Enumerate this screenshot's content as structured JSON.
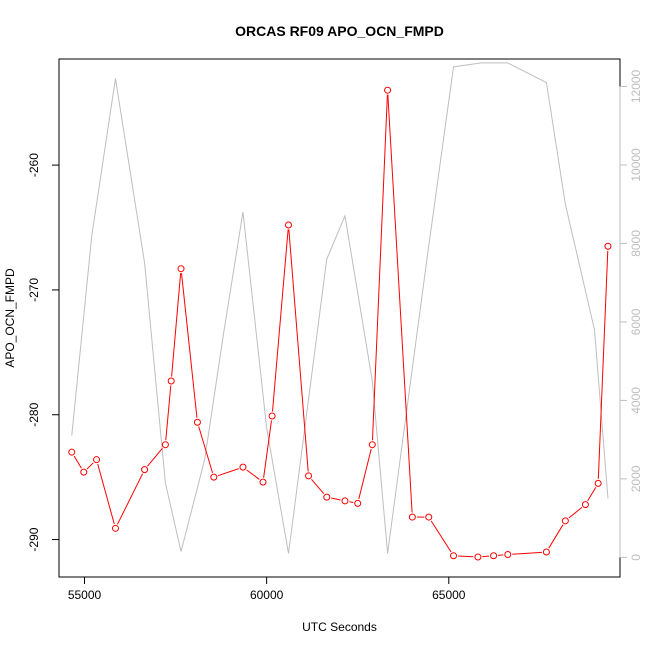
{
  "chart_data": {
    "type": "line",
    "title": "ORCAS RF09 APO_OCN_FMPD",
    "xlabel": "UTC Seconds",
    "ylabel": "APO_OCN_FMPD",
    "xlim": [
      54300,
      69700
    ],
    "ylim": [
      -293,
      -251.5
    ],
    "y2lim": [
      -500,
      12700
    ],
    "x_ticks": [
      55000,
      60000,
      65000
    ],
    "y_ticks": [
      -290,
      -280,
      -270,
      -260
    ],
    "y2_ticks": [
      0,
      2000,
      4000,
      6000,
      8000,
      10000,
      12000
    ],
    "grid": false,
    "series": [
      {
        "axis": "left",
        "style": "line+points",
        "color": "#ff0000",
        "x": [
          54650,
          54980,
          55330,
          55850,
          56650,
          57220,
          57380,
          57650,
          58100,
          58550,
          59350,
          59900,
          60150,
          60600,
          61150,
          61650,
          62150,
          62500,
          62900,
          63320,
          64000,
          64450,
          65130,
          65800,
          66230,
          66620,
          67680,
          68200,
          68750,
          69100,
          69370
        ],
        "y": [
          -283.0,
          -284.6,
          -283.6,
          -289.1,
          -284.4,
          -282.4,
          -277.3,
          -268.3,
          -280.6,
          -285.0,
          -284.2,
          -285.4,
          -280.1,
          -264.8,
          -284.9,
          -286.6,
          -286.9,
          -287.1,
          -282.4,
          -254.0,
          -288.2,
          -288.2,
          -291.3,
          -291.4,
          -291.3,
          -291.2,
          -291.0,
          -288.5,
          -287.2,
          -285.5,
          -266.5
        ]
      },
      {
        "axis": "right",
        "style": "line",
        "color": "#bebebe",
        "x": [
          54650,
          55200,
          55850,
          56650,
          57220,
          57650,
          58300,
          58800,
          59350,
          60000,
          60600,
          61650,
          62150,
          62900,
          63320,
          64400,
          65130,
          65900,
          66620,
          67680,
          68200,
          69000,
          69370
        ],
        "y": [
          3100,
          8200,
          12200,
          7500,
          1900,
          150,
          2500,
          5600,
          8800,
          3300,
          100,
          7600,
          8700,
          4500,
          100,
          7600,
          12500,
          12600,
          12600,
          12100,
          9000,
          5800,
          1500
        ]
      }
    ]
  }
}
